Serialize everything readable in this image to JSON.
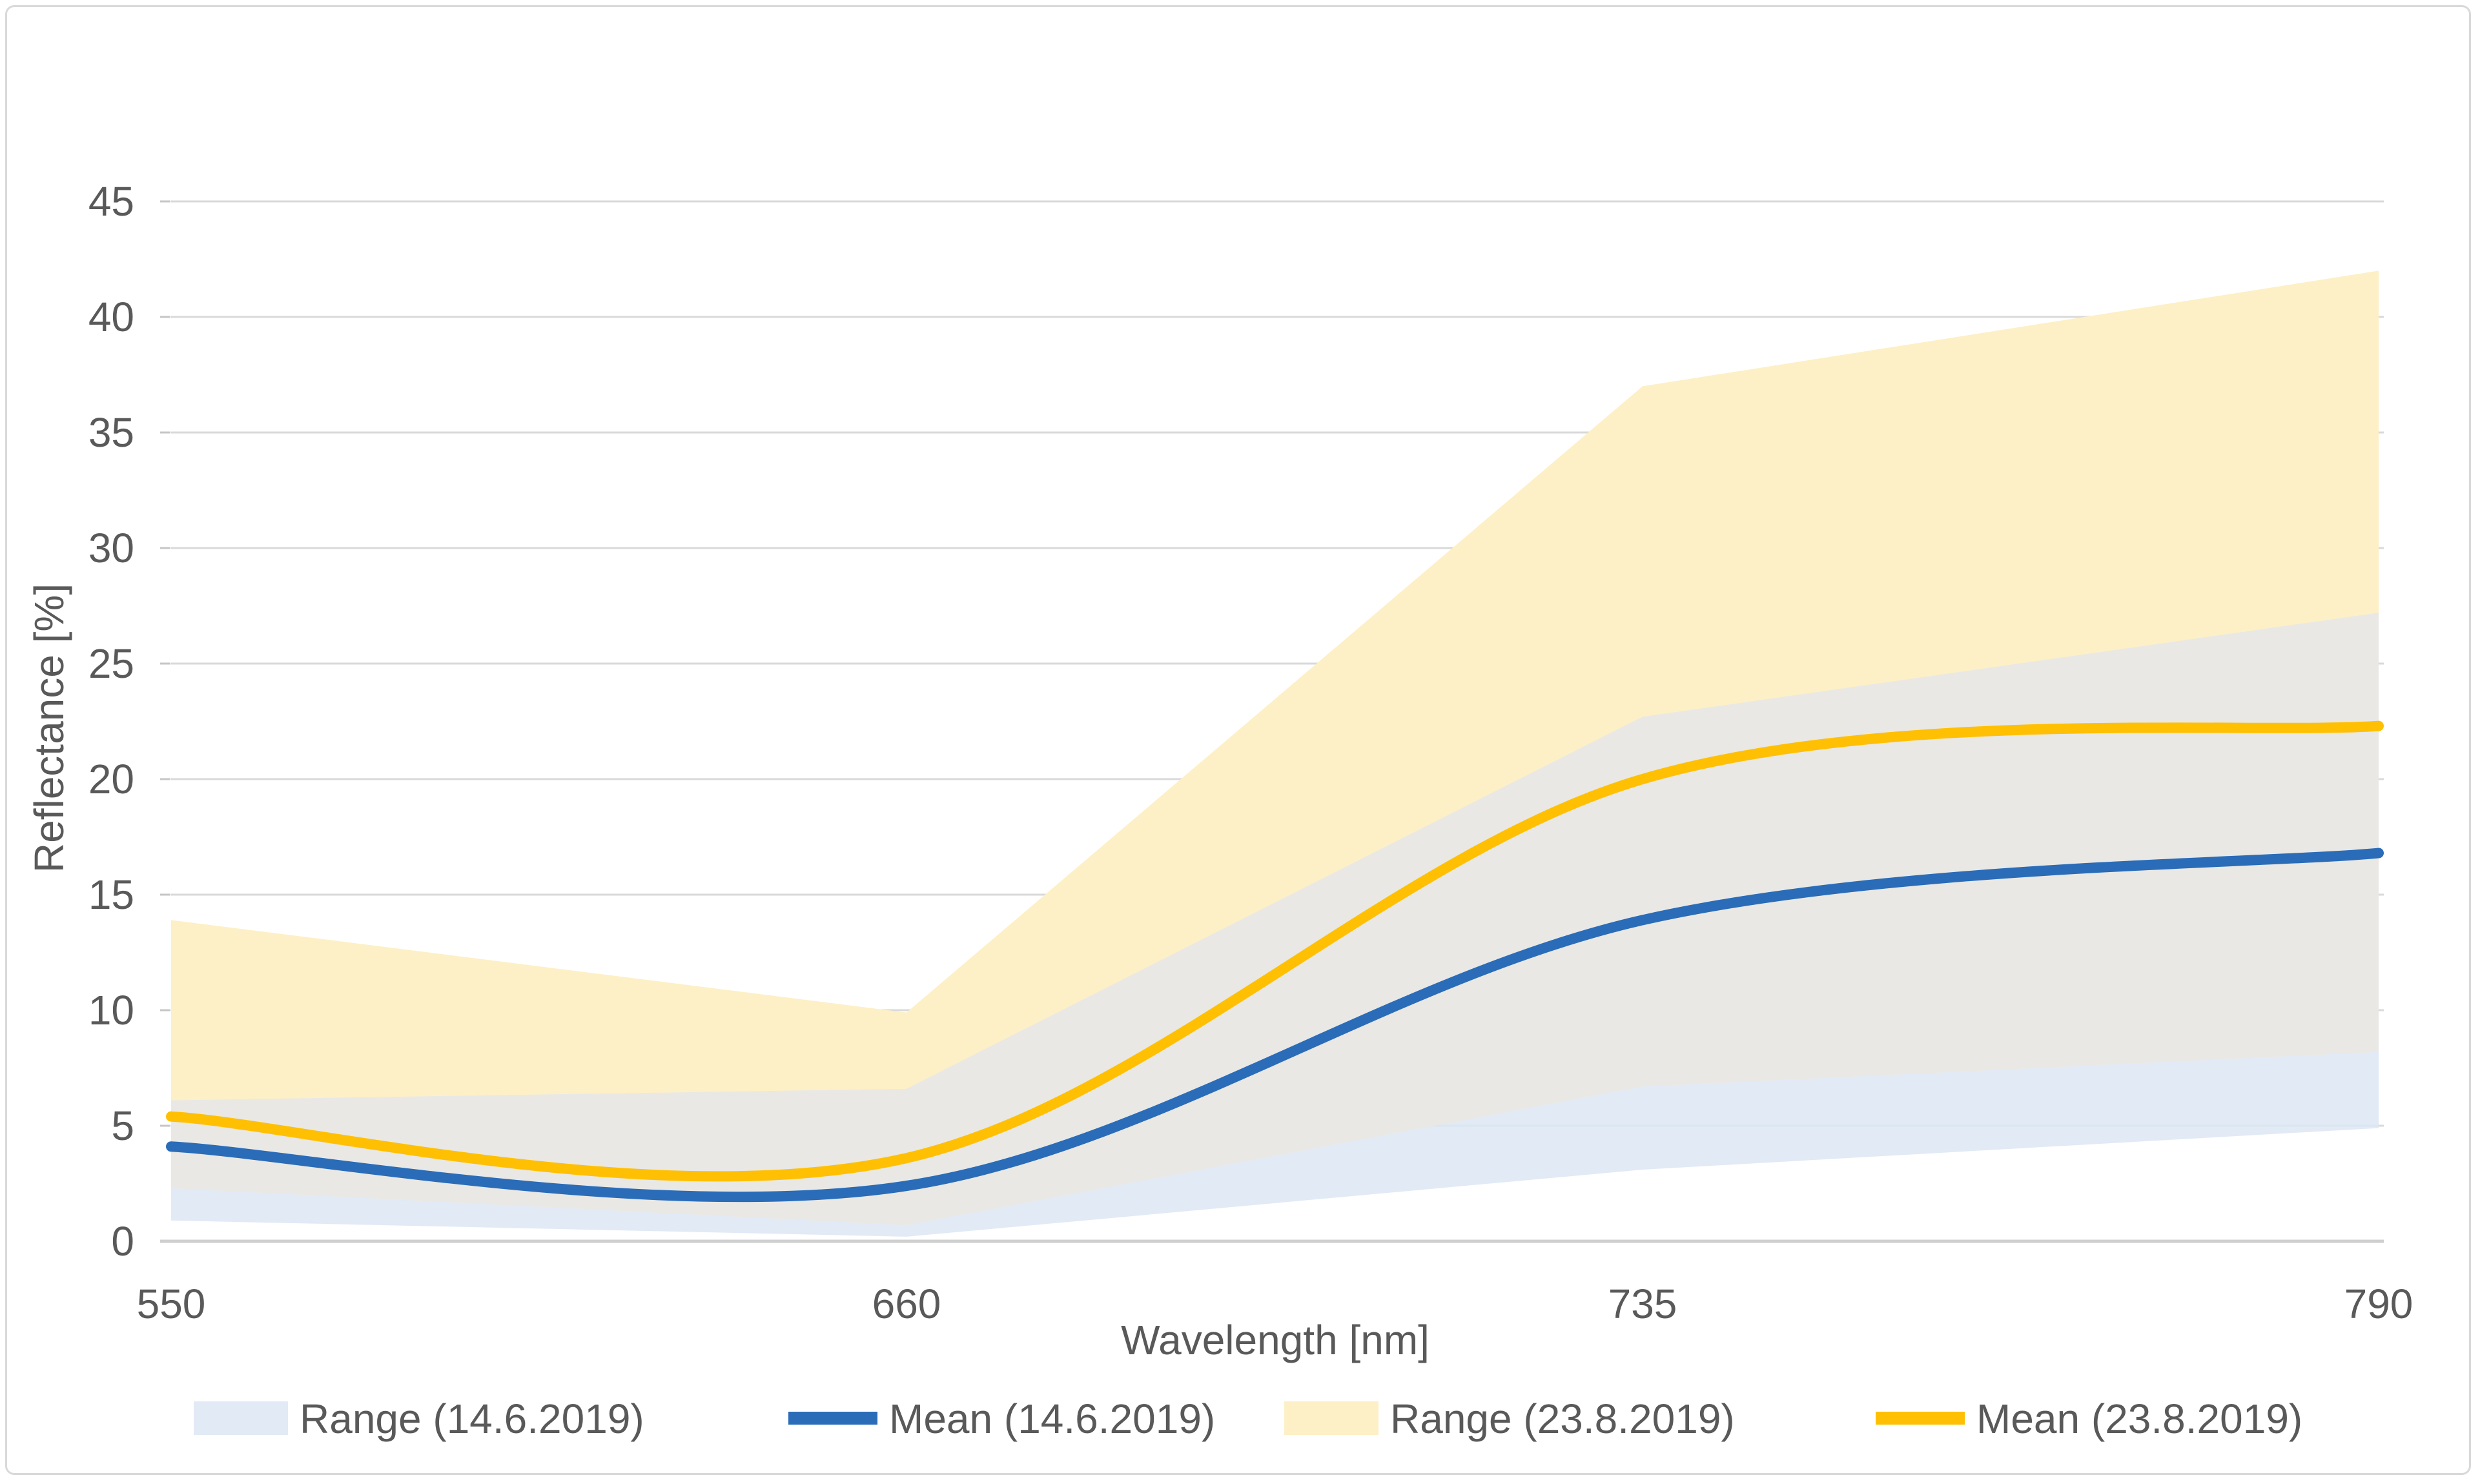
{
  "figure": {
    "background": "#ffffff",
    "border_color": "#d9d9d9"
  },
  "chart_data": {
    "type": "line",
    "title": "",
    "xlabel": "Wavelength [nm]",
    "ylabel": "Reflectance [%]",
    "x": [
      550,
      660,
      735,
      790
    ],
    "x_tick_labels": [
      "550",
      "660",
      "735",
      "790"
    ],
    "ylim": [
      0,
      45
    ],
    "ytick_step": 5,
    "grid": "horizontal-on",
    "legend_position": "bottom",
    "gridline_color": "#d9d9d9",
    "axis_line_color": "#cfcfcf",
    "tick_mark_color": "#c6c6c6",
    "text_color": "#595959",
    "range_overlap_color": "#e9e8e5",
    "series": [
      {
        "name": "Range (14.6.2019)",
        "type": "range",
        "swatch": "rect",
        "min": [
          0.9,
          0.2,
          3.1,
          4.9
        ],
        "max": [
          6.1,
          6.6,
          22.7,
          27.2
        ],
        "color": "#dce6f3",
        "opacity": 0.85
      },
      {
        "name": "Mean (14.6.2019)",
        "type": "line",
        "swatch": "line",
        "values": [
          4.1,
          2.4,
          13.9,
          16.8
        ],
        "color": "#2a6cb8",
        "smooth": true
      },
      {
        "name": "Range (23.8.2019)",
        "type": "range",
        "swatch": "rect",
        "min": [
          2.3,
          0.7,
          6.7,
          8.2
        ],
        "max": [
          13.9,
          9.9,
          37.0,
          42.0
        ],
        "color": "#fdf0c6",
        "opacity": 1
      },
      {
        "name": "Mean (23.8.2019)",
        "type": "line",
        "swatch": "line",
        "values": [
          5.4,
          3.6,
          20.0,
          22.3
        ],
        "color": "#ffc003",
        "smooth": true
      }
    ]
  }
}
